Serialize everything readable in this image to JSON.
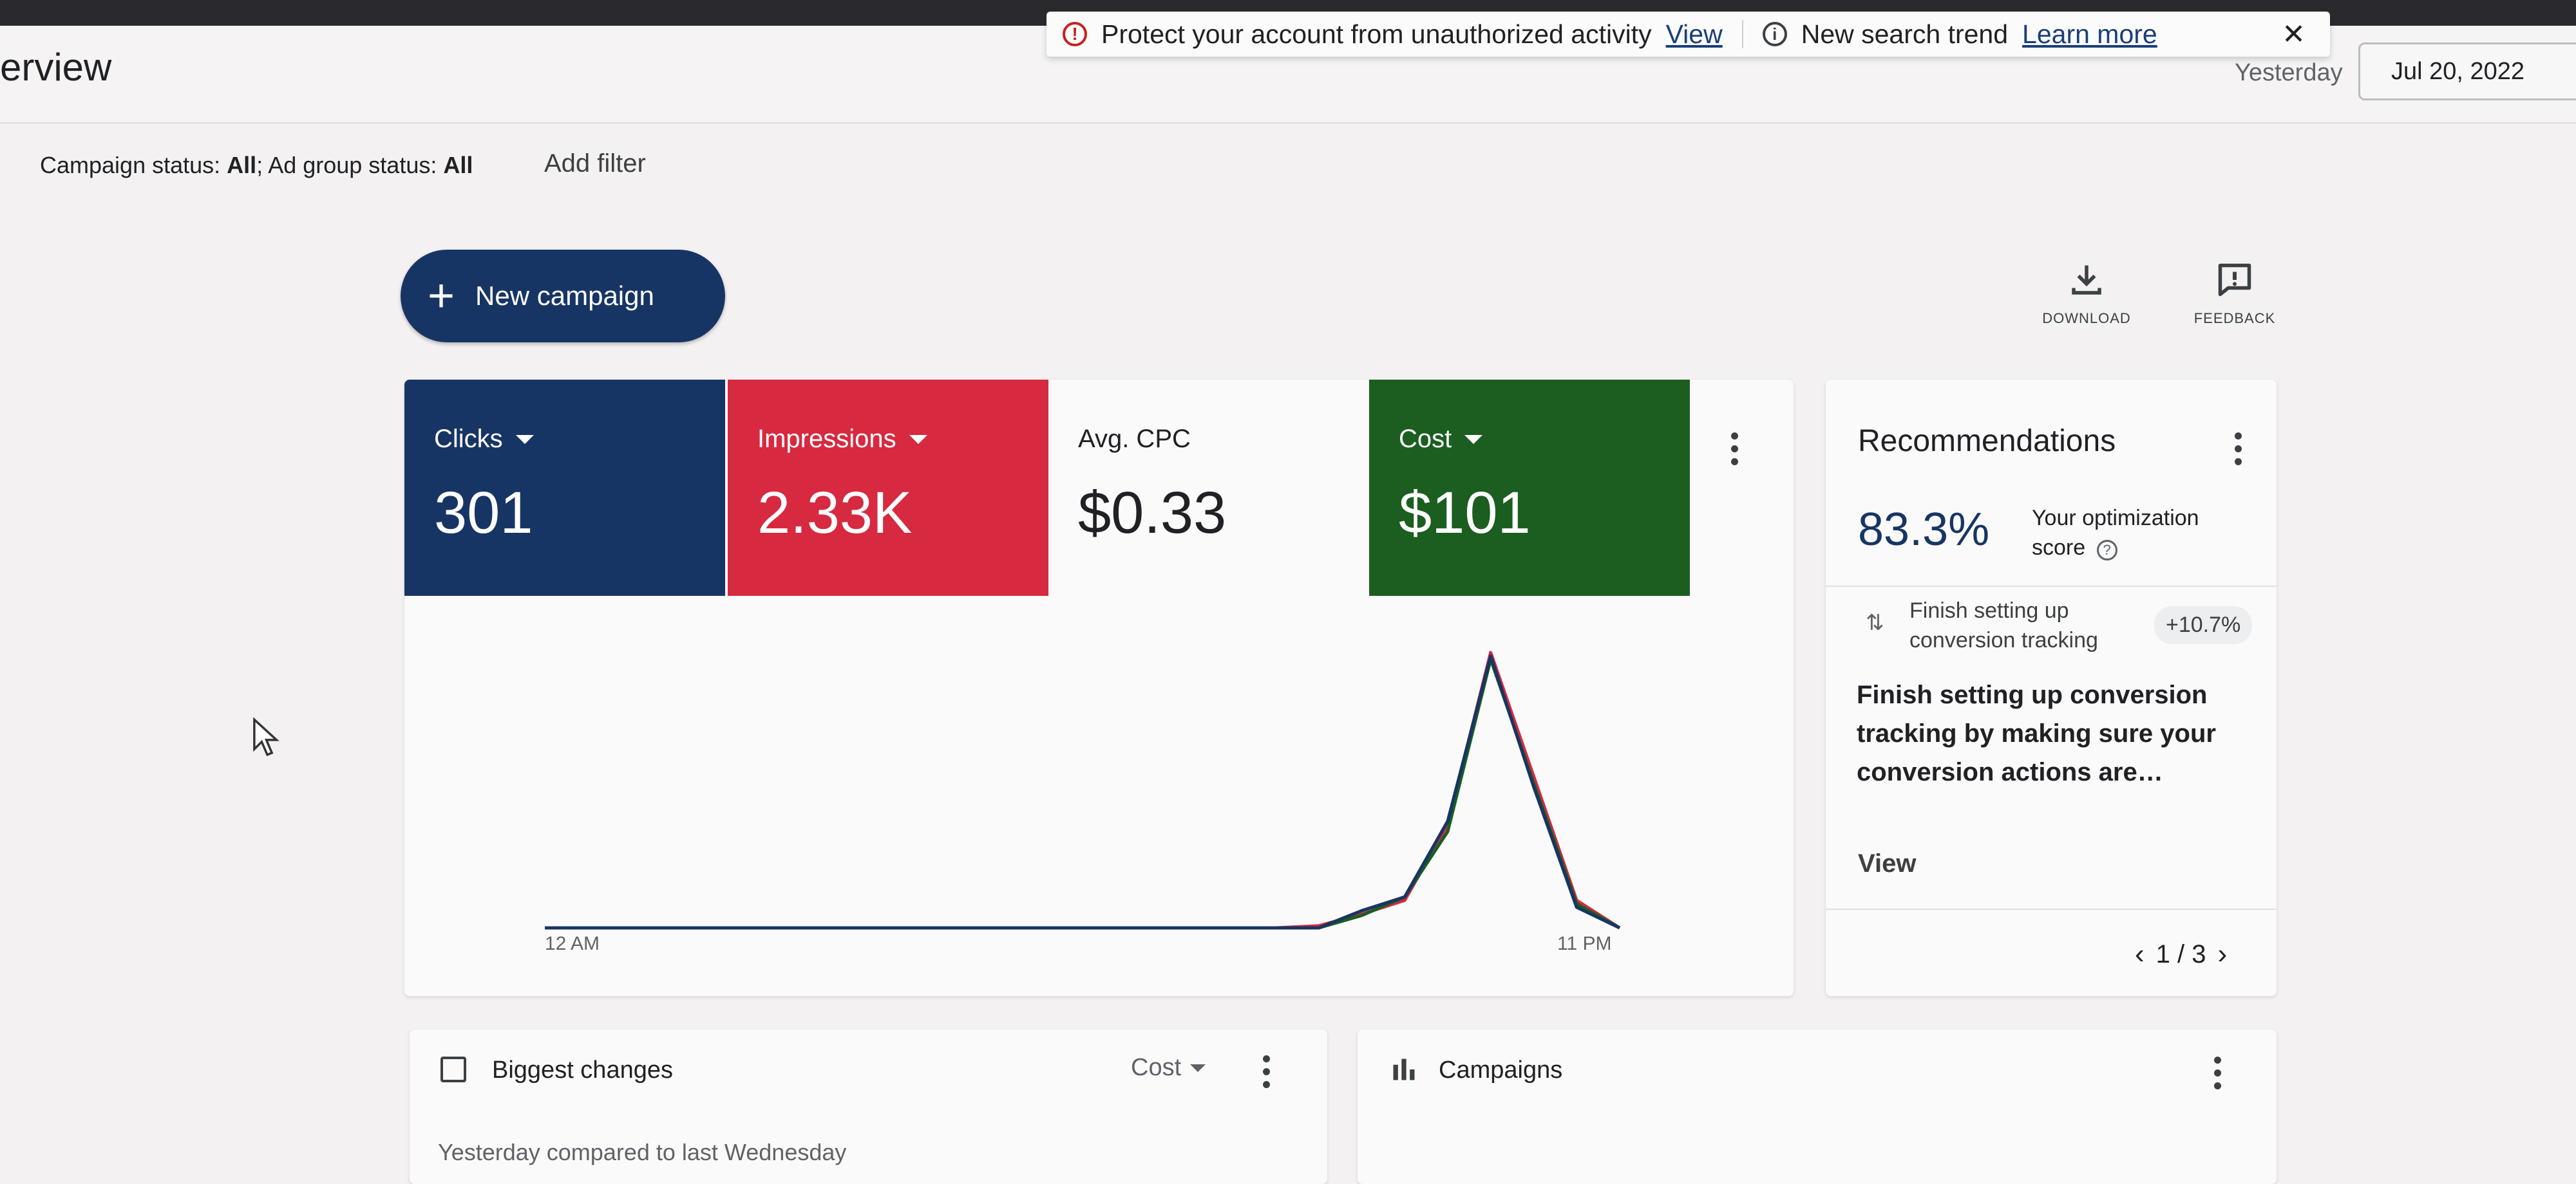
{
  "header": {
    "page_title": "erview",
    "date_label": "Yesterday",
    "date_value": "Jul 20, 2022"
  },
  "notifications": {
    "alert_text": "Protect your account from unauthorized activity",
    "alert_link": "View",
    "trend_text": "New search trend",
    "trend_link": "Learn more",
    "close": "✕"
  },
  "filters": {
    "campaign_status_label": "Campaign status: ",
    "campaign_status_value": "All",
    "adgroup_status_label": "; Ad group status: ",
    "adgroup_status_value": "All",
    "add_filter": "Add filter"
  },
  "toolbar": {
    "new_campaign": "New campaign",
    "download": "DOWNLOAD",
    "feedback": "FEEDBACK"
  },
  "metrics": [
    {
      "label": "Clicks",
      "value": "301",
      "color": "#173564"
    },
    {
      "label": "Impressions",
      "value": "2.33K",
      "color": "#d7293f"
    },
    {
      "label": "Avg. CPC",
      "value": "$0.33",
      "color": ""
    },
    {
      "label": "Cost",
      "value": "$101",
      "color": "#1b5e20"
    }
  ],
  "chart_data": {
    "type": "line",
    "x_tick_labels": [
      "12 AM",
      "11 PM"
    ],
    "series": [
      {
        "color": "#d7293f",
        "values": [
          0,
          0,
          0,
          0,
          0,
          0,
          0,
          0,
          0,
          0,
          0,
          0,
          0,
          0,
          0,
          0,
          0,
          0,
          3,
          20,
          40,
          150,
          400,
          220,
          40,
          0
        ]
      },
      {
        "color": "#1b5e20",
        "values": [
          0,
          0,
          0,
          0,
          0,
          0,
          0,
          0,
          0,
          0,
          0,
          0,
          0,
          0,
          0,
          0,
          0,
          0,
          0,
          18,
          45,
          140,
          390,
          210,
          35,
          0
        ]
      },
      {
        "color": "#173564",
        "values": [
          0,
          0,
          0,
          0,
          0,
          0,
          0,
          0,
          0,
          0,
          0,
          0,
          0,
          0,
          0,
          0,
          0,
          0,
          0,
          25,
          45,
          155,
          395,
          205,
          30,
          0
        ]
      }
    ]
  },
  "recommendations": {
    "title": "Recommendations",
    "score": "83.3%",
    "score_label_line1": "Your optimization",
    "score_label_line2": "score",
    "item_line1": "Finish setting up",
    "item_line2": "conversion tracking",
    "item_badge": "+10.7%",
    "description": "Finish setting up conversion tracking by making sure your conversion actions are…",
    "view": "View",
    "pager": "1 / 3"
  },
  "biggest_changes": {
    "title": "Biggest changes",
    "metric": "Cost",
    "subtitle": "Yesterday compared to last Wednesday"
  },
  "campaigns": {
    "title": "Campaigns"
  }
}
